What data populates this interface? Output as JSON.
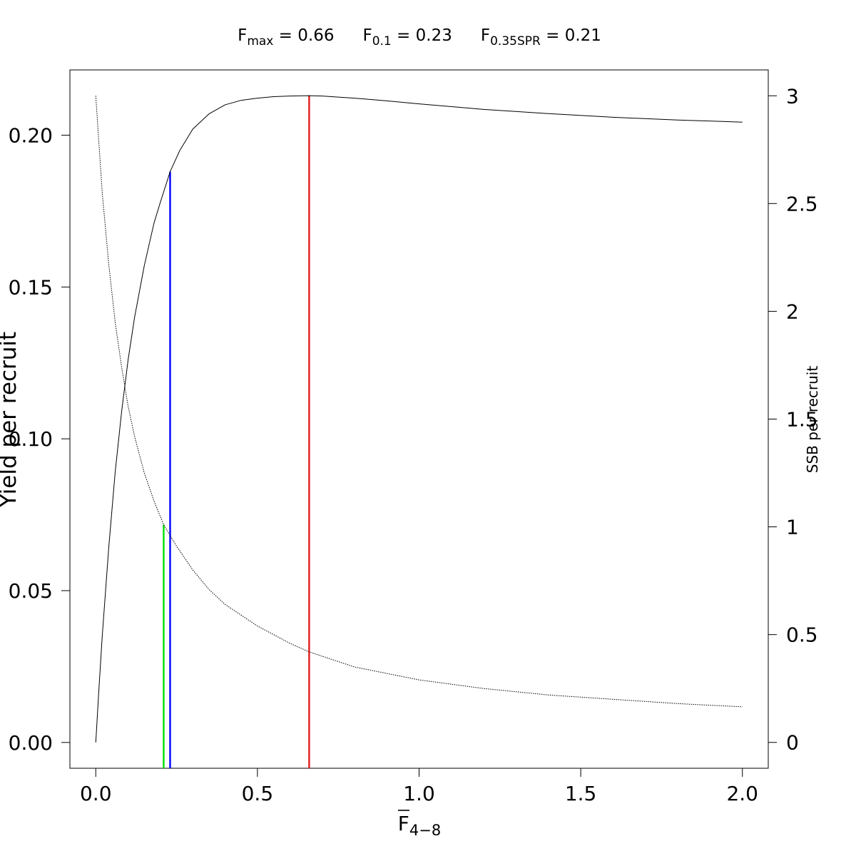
{
  "chart_data": {
    "type": "line",
    "title": "",
    "reference_points": [
      {
        "symbol": "F",
        "subscript": "max",
        "equals": " = ",
        "value": "0.66",
        "x": 0.66,
        "color": "#e31a1c",
        "curve": "ypr"
      },
      {
        "symbol": "F",
        "subscript": "0.1",
        "equals": " = ",
        "value": "0.23",
        "x": 0.23,
        "color": "#0000ff",
        "curve": "ypr"
      },
      {
        "symbol": "F",
        "subscript": "0.35SPR",
        "equals": " = ",
        "value": "0.21",
        "x": 0.21,
        "color": "#00e000",
        "curve": "spr"
      }
    ],
    "xlabel": {
      "symbol": "F",
      "subscript": "4−8"
    },
    "ylabel_left": "Yield per recruit",
    "ylabel_right": "SSB per recruit",
    "xlim": [
      -0.08,
      2.08
    ],
    "ylim_left": [
      -0.0085,
      0.2215
    ],
    "ylim_right": [
      -0.12,
      3.12
    ],
    "x_ticks": [
      {
        "value": 0.0,
        "label": "0.0"
      },
      {
        "value": 0.5,
        "label": "0.5"
      },
      {
        "value": 1.0,
        "label": "1.0"
      },
      {
        "value": 1.5,
        "label": "1.5"
      },
      {
        "value": 2.0,
        "label": "2.0"
      }
    ],
    "y_left_ticks": [
      {
        "value": 0.0,
        "label": "0.00"
      },
      {
        "value": 0.05,
        "label": "0.05"
      },
      {
        "value": 0.1,
        "label": "0.10"
      },
      {
        "value": 0.15,
        "label": "0.15"
      },
      {
        "value": 0.2,
        "label": "0.20"
      }
    ],
    "y_right_ticks": [
      {
        "value": 0,
        "label": "0"
      },
      {
        "value": 0.5,
        "label": "0.5"
      },
      {
        "value": 1,
        "label": "1"
      },
      {
        "value": 1.5,
        "label": "1.5"
      },
      {
        "value": 2,
        "label": "2"
      },
      {
        "value": 2.5,
        "label": "2.5"
      },
      {
        "value": 3,
        "label": "3"
      }
    ],
    "series": [
      {
        "axis": "left",
        "style": "solid",
        "color": "#000000",
        "x": [
          0,
          0.01,
          0.02,
          0.04,
          0.06,
          0.08,
          0.1,
          0.12,
          0.15,
          0.18,
          0.2,
          0.23,
          0.26,
          0.3,
          0.35,
          0.4,
          0.45,
          0.5,
          0.55,
          0.6,
          0.66,
          0.7,
          0.8,
          0.9,
          1.0,
          1.2,
          1.4,
          1.6,
          1.8,
          2.0
        ],
        "values": [
          0,
          0.018,
          0.035,
          0.064,
          0.089,
          0.109,
          0.126,
          0.14,
          0.157,
          0.171,
          0.178,
          0.188,
          0.195,
          0.202,
          0.207,
          0.21,
          0.2115,
          0.2122,
          0.2127,
          0.2129,
          0.213,
          0.2129,
          0.2122,
          0.2113,
          0.2103,
          0.2085,
          0.2071,
          0.2059,
          0.205,
          0.2043
        ]
      },
      {
        "axis": "right",
        "style": "dotted",
        "color": "#000000",
        "x": [
          0,
          0.02,
          0.04,
          0.06,
          0.08,
          0.1,
          0.12,
          0.15,
          0.18,
          0.21,
          0.25,
          0.3,
          0.35,
          0.4,
          0.5,
          0.6,
          0.66,
          0.8,
          1.0,
          1.2,
          1.4,
          1.6,
          1.8,
          2.0
        ],
        "values": [
          3.0,
          2.55,
          2.22,
          1.95,
          1.74,
          1.56,
          1.42,
          1.25,
          1.12,
          1.01,
          0.91,
          0.8,
          0.71,
          0.64,
          0.54,
          0.46,
          0.42,
          0.35,
          0.29,
          0.25,
          0.22,
          0.2,
          0.18,
          0.165
        ]
      }
    ]
  }
}
